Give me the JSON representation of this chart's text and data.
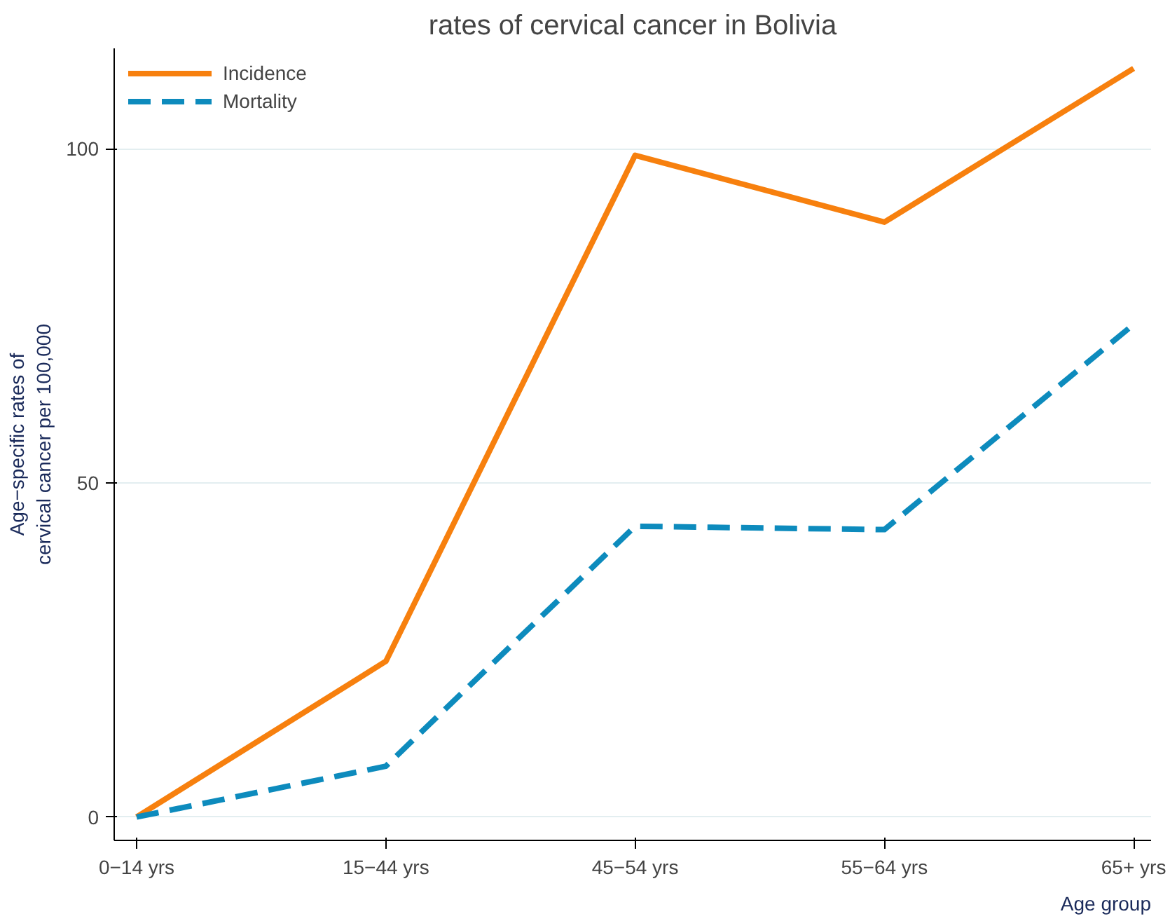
{
  "chart_data": {
    "type": "line",
    "title": "rates of cervical cancer in Bolivia",
    "xlabel": "Age group",
    "ylabel": "Age−specific rates of\ncervical cancer per 100,000",
    "categories": [
      "0−14 yrs",
      "15−44 yrs",
      "45−54 yrs",
      "55−64 yrs",
      "65+ yrs"
    ],
    "series": [
      {
        "name": "Incidence",
        "color": "#f7800e",
        "line_style": "solid",
        "values": [
          0,
          23.3,
          99,
          89,
          112
        ]
      },
      {
        "name": "Mortality",
        "color": "#0d8bbd",
        "line_style": "dashed",
        "values": [
          0,
          7.6,
          43.5,
          43,
          73.7
        ]
      }
    ],
    "ylim": [
      -3.5,
      115
    ],
    "yticks": [
      0,
      50,
      100
    ],
    "grid": "y",
    "legend": "top left"
  }
}
